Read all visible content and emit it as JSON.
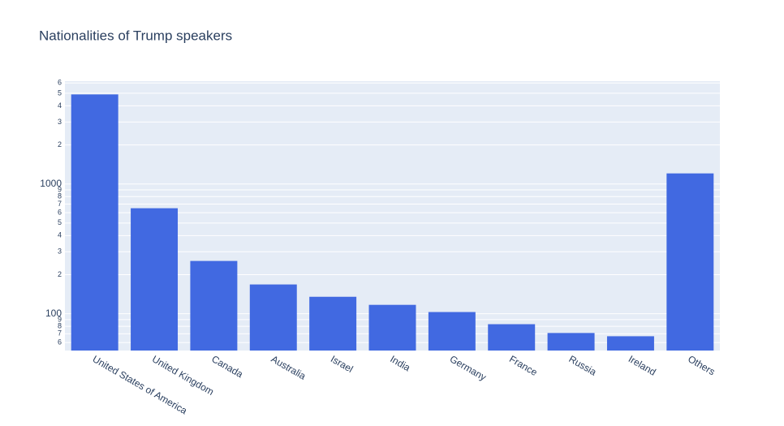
{
  "chart_data": {
    "type": "bar",
    "title": "Nationalities of Trump speakers",
    "categories": [
      "United States of America",
      "United Kingdom",
      "Canada",
      "Australia",
      "Israel",
      "India",
      "Germany",
      "France",
      "Russia",
      "Ireland",
      "Others"
    ],
    "values": [
      4900,
      650,
      255,
      168,
      135,
      117,
      103,
      83,
      71,
      67,
      1206
    ],
    "color": "#4169e1",
    "log_y": true,
    "ylim": [
      52,
      6200
    ],
    "yticks": [
      {
        "value": 60,
        "label": "6"
      },
      {
        "value": 70,
        "label": "7"
      },
      {
        "value": 80,
        "label": "8"
      },
      {
        "value": 90,
        "label": "9"
      },
      100,
      {
        "value": 200,
        "label": "2"
      },
      {
        "value": 300,
        "label": "3"
      },
      {
        "value": 400,
        "label": "4"
      },
      {
        "value": 500,
        "label": "5"
      },
      {
        "value": 600,
        "label": "6"
      },
      {
        "value": 700,
        "label": "7"
      },
      {
        "value": 800,
        "label": "8"
      },
      {
        "value": 900,
        "label": "9"
      },
      1000,
      {
        "value": 2000,
        "label": "2"
      },
      {
        "value": 3000,
        "label": "3"
      },
      {
        "value": 4000,
        "label": "4"
      },
      {
        "value": 5000,
        "label": "5"
      },
      {
        "value": 6000,
        "label": "6"
      }
    ],
    "grid": true
  }
}
